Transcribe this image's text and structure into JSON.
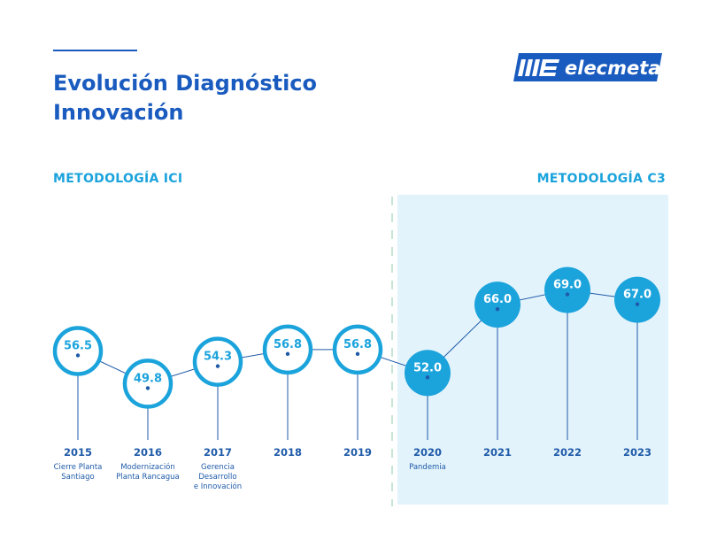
{
  "header": {
    "title_line1": "Evolución Diagnóstico",
    "title_line2": "Innovación",
    "logo_text": "elecmetal"
  },
  "methods": {
    "left": "METODOLOGÍA ICI",
    "right": "METODOLOGÍA C3"
  },
  "colors": {
    "title": "#1a5bbf",
    "accent": "#1ba3dc",
    "line": "#1e5aa8",
    "highlight_bg": "#e3f3fb"
  },
  "chart_data": {
    "type": "line",
    "title": "",
    "xlabel": "",
    "ylabel": "",
    "x": [
      "2015",
      "2016",
      "2017",
      "2018",
      "2019",
      "2020",
      "2021",
      "2022",
      "2023"
    ],
    "values": [
      56.5,
      49.8,
      54.3,
      56.8,
      56.8,
      52.0,
      66.0,
      69.0,
      67.0
    ],
    "annotations": [
      "Cierre Planta\nSantiago",
      "Modernización\nPlanta Rancagua",
      "Gerencia\nDesarrollo\ne Innovación",
      "",
      "",
      "Pandemia",
      "",
      "",
      ""
    ],
    "methodology": [
      "ICI",
      "ICI",
      "ICI",
      "ICI",
      "ICI",
      "C3",
      "C3",
      "C3",
      "C3"
    ],
    "grid": false,
    "legend": "none"
  }
}
